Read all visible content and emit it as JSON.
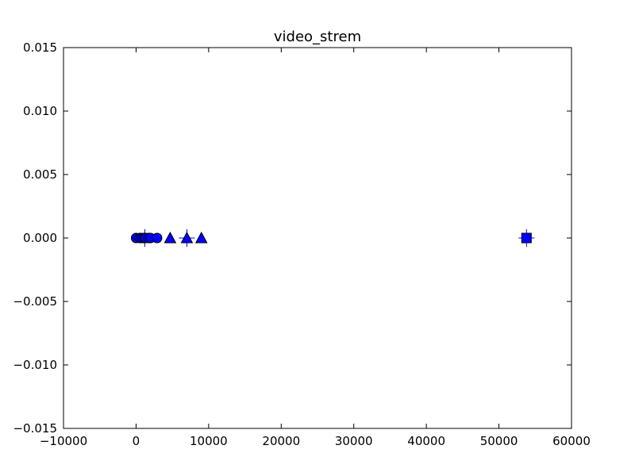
{
  "chart_data": {
    "type": "scatter",
    "title": "video_strem",
    "xlabel": "",
    "ylabel": "",
    "xlim": [
      -10000,
      60000
    ],
    "ylim": [
      -0.015,
      0.015
    ],
    "x_ticks": [
      -10000,
      0,
      10000,
      20000,
      30000,
      40000,
      50000,
      60000
    ],
    "y_ticks": [
      -0.015,
      -0.01,
      -0.005,
      0.0,
      0.005,
      0.01,
      0.015
    ],
    "x_tick_labels": [
      "−10000",
      "0",
      "10000",
      "20000",
      "30000",
      "40000",
      "50000",
      "60000"
    ],
    "y_tick_labels": [
      "−0.015",
      "−0.010",
      "−0.005",
      "0.000",
      "0.005",
      "0.010",
      "0.015"
    ],
    "grid": false,
    "marker_color": "#0000ff",
    "series": [
      {
        "marker": "circle",
        "points": [
          {
            "x": 0,
            "y": 0
          },
          {
            "x": 500,
            "y": 0
          },
          {
            "x": 800,
            "y": 0
          },
          {
            "x": 1100,
            "y": 0
          },
          {
            "x": 1300,
            "y": 0
          },
          {
            "x": 1700,
            "y": 0
          },
          {
            "x": 2000,
            "y": 0
          },
          {
            "x": 2900,
            "y": 0
          }
        ],
        "errorbars": [
          {
            "x": 1200,
            "y": 0,
            "xerr": 600,
            "yerr": 0.0007
          }
        ]
      },
      {
        "marker": "triangle",
        "points": [
          {
            "x": 4700,
            "y": 0
          },
          {
            "x": 7000,
            "y": 0
          },
          {
            "x": 9000,
            "y": 0
          }
        ],
        "errorbars": [
          {
            "x": 7000,
            "y": 0,
            "xerr": 1100,
            "yerr": 0.0007
          }
        ]
      },
      {
        "marker": "square",
        "points": [
          {
            "x": 53800,
            "y": 0
          }
        ],
        "errorbars": [
          {
            "x": 53800,
            "y": 0,
            "xerr": 1100,
            "yerr": 0.0007
          }
        ]
      }
    ]
  }
}
